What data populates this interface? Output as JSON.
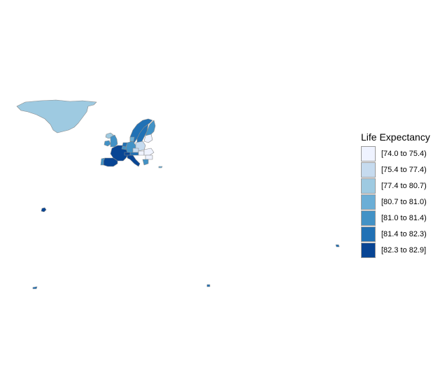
{
  "legend": {
    "title": "Life Expectancy",
    "items": [
      {
        "label": "[74.0 to 75.4)",
        "color": "#eff3ff"
      },
      {
        "label": "[75.4 to 77.4)",
        "color": "#c6dbef"
      },
      {
        "label": "[77.4 to 80.7)",
        "color": "#9ecae1"
      },
      {
        "label": "[80.7 to 81.0)",
        "color": "#6baed6"
      },
      {
        "label": "[81.0 to 81.4)",
        "color": "#4292c6"
      },
      {
        "label": "[81.4 to 82.3)",
        "color": "#2171b5"
      },
      {
        "label": "[82.3 to 82.9]",
        "color": "#084594"
      }
    ]
  },
  "regions": [
    {
      "name": "greenland",
      "class_index": 2
    },
    {
      "name": "iceland",
      "class_index": 2
    },
    {
      "name": "norway",
      "class_index": 5
    },
    {
      "name": "sweden",
      "class_index": 5
    },
    {
      "name": "finland",
      "class_index": 4
    },
    {
      "name": "ireland",
      "class_index": 4
    },
    {
      "name": "united-kingdom",
      "class_index": 4
    },
    {
      "name": "france",
      "class_index": 6
    },
    {
      "name": "spain",
      "class_index": 6
    },
    {
      "name": "portugal",
      "class_index": 4
    },
    {
      "name": "germany",
      "class_index": 4
    },
    {
      "name": "netherlands",
      "class_index": 5
    },
    {
      "name": "belgium",
      "class_index": 4
    },
    {
      "name": "denmark",
      "class_index": 3
    },
    {
      "name": "poland",
      "class_index": 1
    },
    {
      "name": "czechia",
      "class_index": 1
    },
    {
      "name": "austria",
      "class_index": 5
    },
    {
      "name": "switzerland",
      "class_index": 6
    },
    {
      "name": "italy",
      "class_index": 6
    },
    {
      "name": "hungary",
      "class_index": 0
    },
    {
      "name": "romania",
      "class_index": 0
    },
    {
      "name": "bulgaria",
      "class_index": 0
    },
    {
      "name": "greece",
      "class_index": 4
    },
    {
      "name": "baltics",
      "class_index": 0
    },
    {
      "name": "canary-islands",
      "class_index": 6
    },
    {
      "name": "cyprus",
      "class_index": 3
    },
    {
      "name": "reunion",
      "class_index": 5
    },
    {
      "name": "guadeloupe",
      "class_index": 5
    },
    {
      "name": "french-guiana",
      "class_index": 5
    }
  ]
}
